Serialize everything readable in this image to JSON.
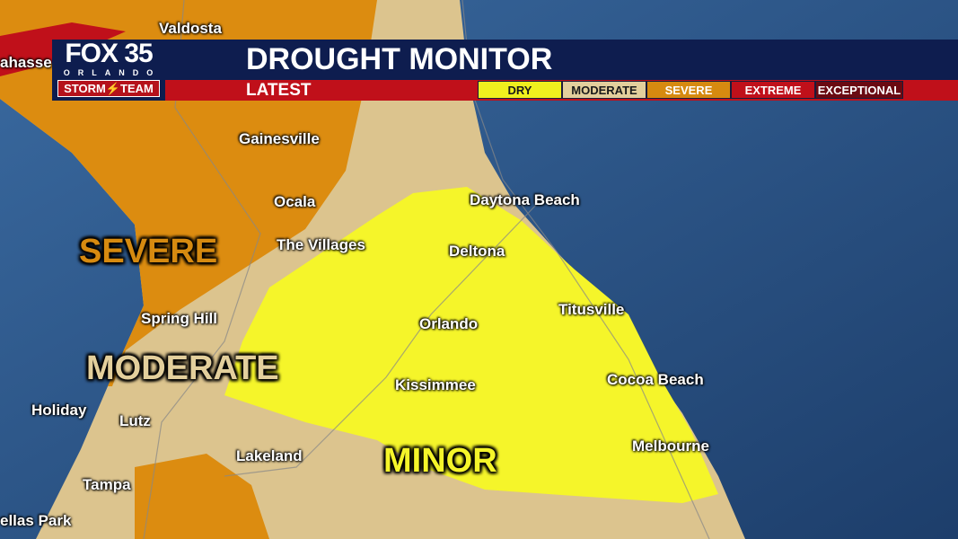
{
  "header": {
    "logo": {
      "brand": "FOX 35",
      "city": "ORLANDO",
      "team": "STORM⚡TEAM"
    },
    "title": "DROUGHT MONITOR",
    "subtitle": "LATEST",
    "legend": [
      {
        "label": "DRY",
        "color": "#f0ef1e",
        "text": "#1a1a1a"
      },
      {
        "label": "MODERATE",
        "color": "#e3cf9c",
        "text": "#1a1a1a"
      },
      {
        "label": "SEVERE",
        "color": "#d68a10",
        "text": "#ffffff"
      },
      {
        "label": "EXTREME",
        "color": "#c0101a",
        "text": "#ffffff"
      },
      {
        "label": "EXCEPTIONAL",
        "color": "#6a0a12",
        "text": "#ffffff"
      }
    ]
  },
  "map": {
    "colors": {
      "ocean": "#2a4f7d",
      "dry": "#f5f52a",
      "moderate": "#dcc48e",
      "severe": "#dc8c10",
      "extreme": "#c0101a"
    },
    "categories": [
      {
        "label": "SEVERE",
        "color": "#d68a10"
      },
      {
        "label": "MODERATE",
        "color": "#e3cf9c"
      },
      {
        "label": "MINOR",
        "color": "#f5f52a"
      }
    ],
    "cities": [
      "Valdosta",
      "ahasse",
      "Gainesville",
      "Ocala",
      "The Villages",
      "Daytona Beach",
      "Deltona",
      "Titusville",
      "Orlando",
      "Spring Hill",
      "Kissimmee",
      "Cocoa Beach",
      "Holiday",
      "Lutz",
      "Melbourne",
      "Lakeland",
      "Tampa",
      "ellas Park"
    ]
  }
}
